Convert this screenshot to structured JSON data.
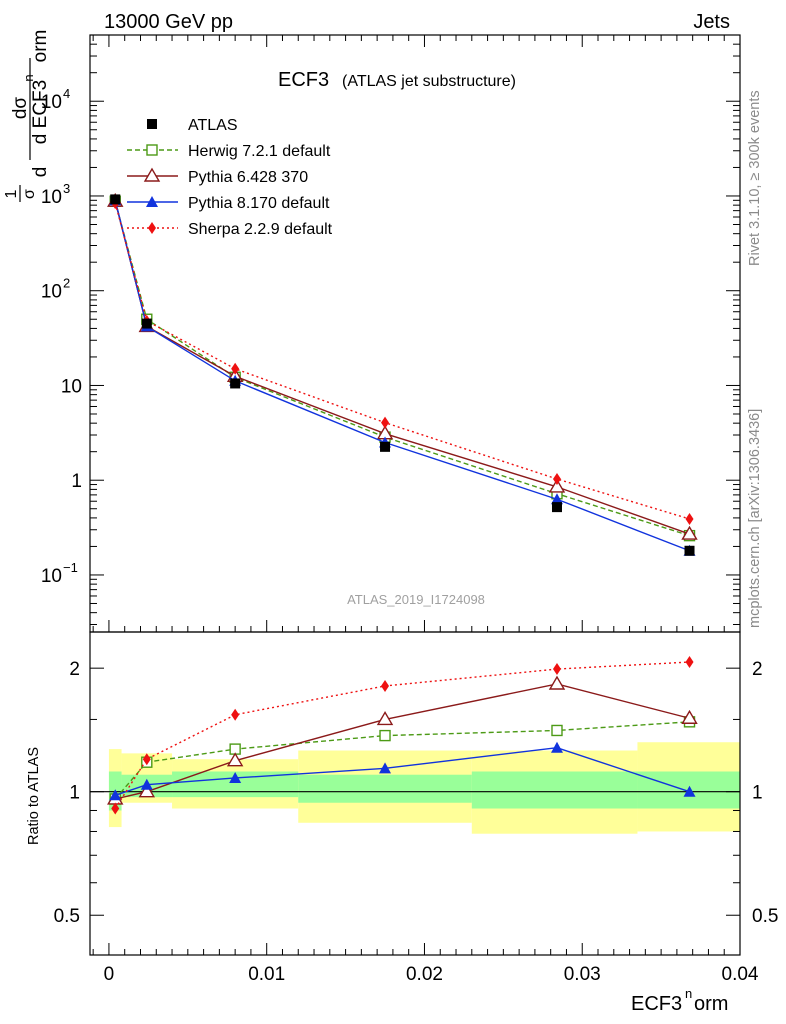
{
  "header": {
    "left": "13000 GeV pp",
    "right": "Jets"
  },
  "side_labels": {
    "top": "Rivet 3.1.10, ≥ 300k events",
    "bottom": "mcplots.cern.ch [arXiv:1306.3436]"
  },
  "chart_data": [
    {
      "type": "scatter",
      "title": "ECF3",
      "subtitle": "(ATLAS jet substructure)",
      "watermark": "ATLAS_2019_I1724098",
      "ylabel_parts": [
        "dσ",
        "d ECF3",
        "n",
        "orm",
        "1",
        "σ",
        "d"
      ],
      "yscale": "log",
      "xlim": [
        -0.0012,
        0.04
      ],
      "ylim": [
        0.025,
        50000
      ],
      "yticks": [
        {
          "label": "10",
          "exp": "−1",
          "value": 0.1
        },
        {
          "label": "1",
          "exp": "",
          "value": 1
        },
        {
          "label": "10",
          "exp": "",
          "value": 10
        },
        {
          "label": "10",
          "exp": "2",
          "value": 100
        },
        {
          "label": "10",
          "exp": "3",
          "value": 1000
        },
        {
          "label": "10",
          "exp": "4",
          "value": 10000
        }
      ],
      "x": [
        0.0004,
        0.0024,
        0.008,
        0.0175,
        0.0284,
        0.0368
      ],
      "series": [
        {
          "name": "ATLAS",
          "color": "#000000",
          "marker": "filled-square",
          "line": "none",
          "values": [
            920,
            45,
            10.5,
            2.25,
            0.52,
            0.18
          ]
        },
        {
          "name": "Herwig 7.2.1 default",
          "color": "#4c9a16",
          "marker": "open-square",
          "line": "dashed",
          "values": [
            880,
            50,
            12.2,
            2.85,
            0.72,
            0.26
          ]
        },
        {
          "name": "Pythia 6.428 370",
          "color": "#8b1a1a",
          "marker": "open-triangle",
          "line": "solid",
          "values": [
            880,
            42,
            12.5,
            3.1,
            0.85,
            0.27
          ]
        },
        {
          "name": "Pythia 8.170 default",
          "color": "#1133dd",
          "marker": "filled-triangle",
          "line": "solid",
          "values": [
            900,
            42,
            11.2,
            2.5,
            0.63,
            0.18
          ]
        },
        {
          "name": "Sherpa 2.2.9 default",
          "color": "#ee1111",
          "marker": "filled-diamond",
          "line": "dotted",
          "values": [
            840,
            48,
            15,
            4.05,
            1.03,
            0.39
          ]
        }
      ]
    },
    {
      "type": "scatter",
      "ylabel": "Ratio to ATLAS",
      "xlabel_parts": [
        "ECF3",
        "n",
        "orm"
      ],
      "yscale": "log",
      "xlim": [
        -0.0012,
        0.04
      ],
      "ylim": [
        0.4,
        2.45
      ],
      "xticks": [
        "0",
        "0.01",
        "0.02",
        "0.03",
        "0.04"
      ],
      "yticks": [
        "0.5",
        "1",
        "2"
      ],
      "reference_line": 1,
      "bins": [
        0,
        0.0008,
        0.004,
        0.012,
        0.023,
        0.0335,
        0.04
      ],
      "band_2sigma": {
        "color": "#ffff99",
        "lo": [
          0.82,
          0.94,
          0.91,
          0.84,
          0.79,
          0.8
        ],
        "hi": [
          1.27,
          1.24,
          1.2,
          1.26,
          1.26,
          1.32
        ]
      },
      "band_1sigma": {
        "color": "#99ff99",
        "lo": [
          0.9,
          0.97,
          0.97,
          0.94,
          0.91,
          0.91
        ],
        "hi": [
          1.12,
          1.1,
          1.12,
          1.1,
          1.12,
          1.12
        ]
      },
      "x": [
        0.0004,
        0.0024,
        0.008,
        0.0175,
        0.0284,
        0.0368
      ],
      "series": [
        {
          "name": "Herwig 7.2.1 default",
          "values": [
            0.96,
            1.18,
            1.27,
            1.37,
            1.41,
            1.48
          ]
        },
        {
          "name": "Pythia 6.428 370",
          "values": [
            0.96,
            1.0,
            1.19,
            1.5,
            1.83,
            1.51
          ]
        },
        {
          "name": "Pythia 8.170 default",
          "values": [
            0.98,
            1.04,
            1.08,
            1.14,
            1.28,
            1.0
          ]
        },
        {
          "name": "Sherpa 2.2.9 default",
          "values": [
            0.91,
            1.2,
            1.54,
            1.81,
            1.99,
            2.07
          ]
        }
      ]
    }
  ]
}
